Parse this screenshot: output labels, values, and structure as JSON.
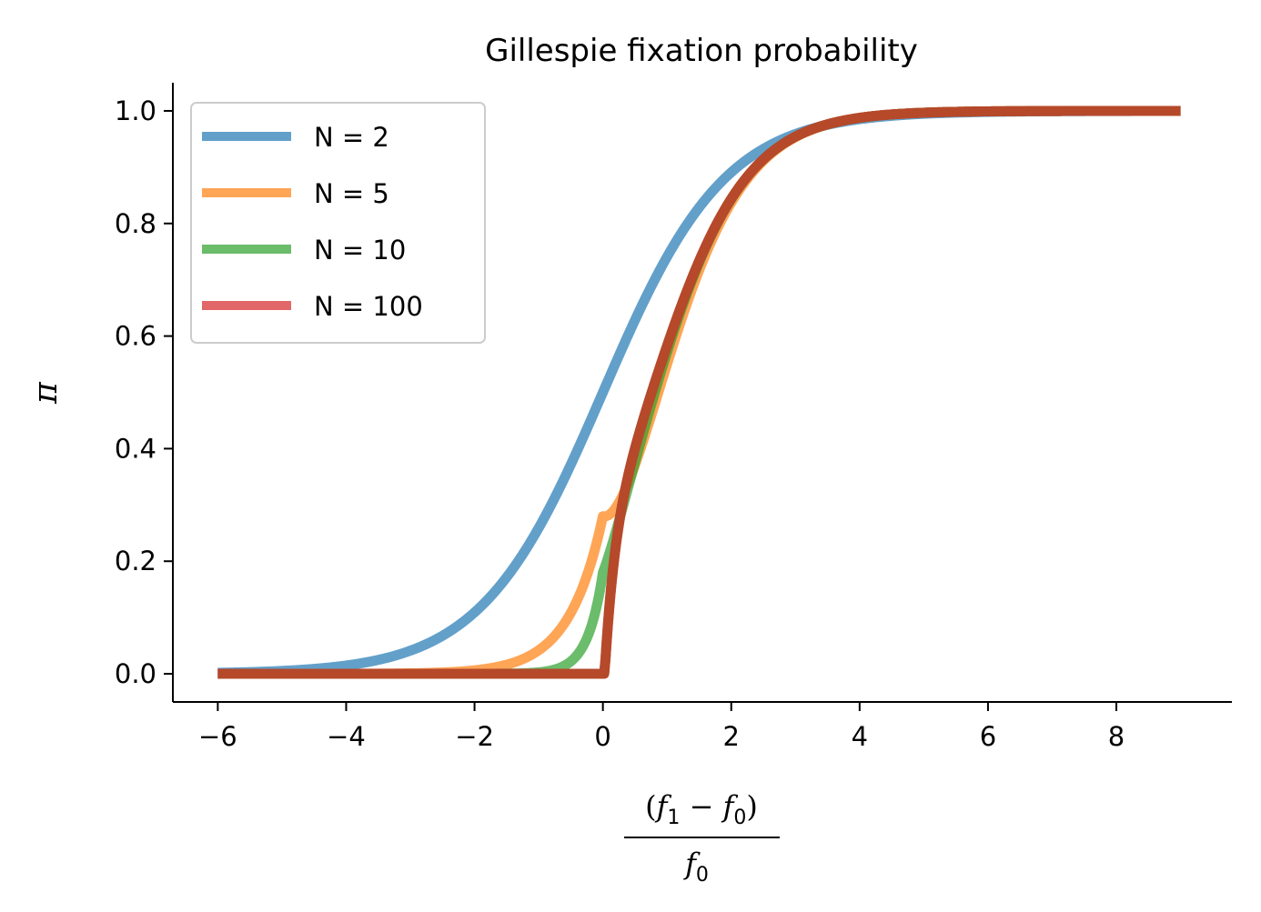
{
  "chart_data": {
    "type": "line",
    "title": "Gillespie fixation probability",
    "ylabel": "π",
    "xlabel": {
      "numerator_open": "(",
      "numerator_f": "f",
      "numerator_sub1": "1",
      "numerator_minus": " − ",
      "numerator_f2": "f",
      "numerator_sub0": "0",
      "numerator_close": ")",
      "denominator_f": "f",
      "denominator_sub": "0"
    },
    "xlim": [
      -6.7,
      9.8
    ],
    "ylim": [
      -0.05,
      1.05
    ],
    "x_range": [
      -6,
      9
    ],
    "x_ticks": [
      -6,
      -4,
      -2,
      0,
      2,
      4,
      6,
      8
    ],
    "x_tick_labels": [
      "−6",
      "−4",
      "−2",
      "0",
      "2",
      "4",
      "6",
      "8"
    ],
    "y_ticks": [
      0.0,
      0.2,
      0.4,
      0.6,
      0.8,
      1.0
    ],
    "y_tick_labels": [
      "0.0",
      "0.2",
      "0.4",
      "0.6",
      "0.8",
      "1.0"
    ],
    "grid": false,
    "legend_position": "top-left",
    "series": [
      {
        "name": "N = 2",
        "N": 2,
        "color": "#1f77b4",
        "opacity": 0.7
      },
      {
        "name": "N = 5",
        "N": 5,
        "color": "#ff7f0e",
        "opacity": 0.7
      },
      {
        "name": "N = 10",
        "N": 10,
        "color": "#2ca02c",
        "opacity": 0.7
      },
      {
        "name": "N = 100",
        "N": 100,
        "color": "#d62728",
        "opacity": 0.7
      }
    ],
    "overlay_color": "#b5492a"
  }
}
